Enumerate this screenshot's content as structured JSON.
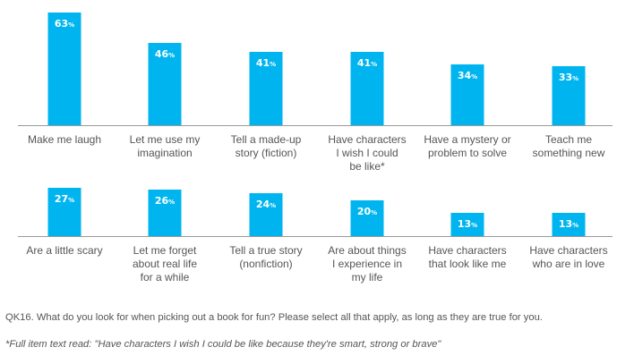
{
  "chart_data": [
    {
      "type": "bar",
      "categories": [
        [
          "Make me laugh"
        ],
        [
          "Let me use my",
          "imagination"
        ],
        [
          "Tell a made-up",
          "story (fiction)"
        ],
        [
          "Have characters",
          "I wish I could",
          "be like*"
        ],
        [
          "Have a mystery or",
          "problem to solve"
        ],
        [
          "Teach me",
          "something new"
        ]
      ],
      "values": [
        63,
        46,
        41,
        41,
        34,
        33
      ],
      "value_labels": [
        "63%",
        "46%",
        "41%",
        "41%",
        "34%",
        "33%"
      ],
      "ylim": [
        0,
        66
      ],
      "grid": false,
      "bar_color": "#00b5ef"
    },
    {
      "type": "bar",
      "categories": [
        [
          "Are a little scary"
        ],
        [
          "Let me forget",
          "about real life",
          "for a while"
        ],
        [
          "Tell a true story",
          "(nonfiction)"
        ],
        [
          "Are about things",
          "I experience in",
          "my life"
        ],
        [
          "Have characters",
          "that look like me"
        ],
        [
          "Have characters",
          "who are in love"
        ]
      ],
      "values": [
        27,
        26,
        24,
        20,
        13,
        13
      ],
      "value_labels": [
        "27%",
        "26%",
        "24%",
        "20%",
        "13%",
        "13%"
      ],
      "ylim": [
        0,
        66
      ],
      "grid": false,
      "bar_color": "#00b5ef"
    }
  ],
  "question": "QK16. What do you look for when picking out a book for fun? Please select all that apply, as long as they are true for you.",
  "note": "*Full item text read: \"Have characters I wish I could be like because they're smart, strong or brave\""
}
